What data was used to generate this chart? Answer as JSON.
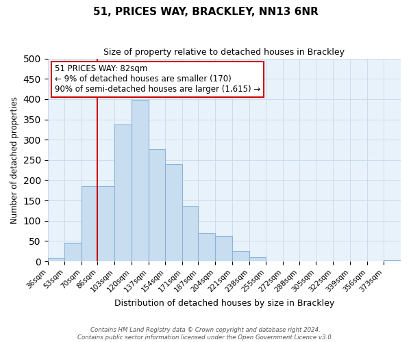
{
  "title": "51, PRICES WAY, BRACKLEY, NN13 6NR",
  "subtitle": "Size of property relative to detached houses in Brackley",
  "xlabel": "Distribution of detached houses by size in Brackley",
  "ylabel": "Number of detached properties",
  "bar_labels": [
    "36sqm",
    "53sqm",
    "70sqm",
    "86sqm",
    "103sqm",
    "120sqm",
    "137sqm",
    "154sqm",
    "171sqm",
    "187sqm",
    "204sqm",
    "221sqm",
    "238sqm",
    "255sqm",
    "272sqm",
    "288sqm",
    "305sqm",
    "322sqm",
    "339sqm",
    "356sqm",
    "373sqm"
  ],
  "bar_values": [
    8,
    46,
    185,
    185,
    338,
    398,
    277,
    240,
    136,
    70,
    62,
    25,
    10,
    0,
    0,
    0,
    0,
    0,
    0,
    0,
    3
  ],
  "bar_color": "#c9ddf0",
  "bar_edge_color": "#8ab4d8",
  "bin_edges": [
    36,
    53,
    70,
    86,
    103,
    120,
    137,
    154,
    171,
    187,
    204,
    221,
    238,
    255,
    272,
    288,
    305,
    322,
    339,
    356,
    373,
    390
  ],
  "ylim": [
    0,
    500
  ],
  "yticks": [
    0,
    50,
    100,
    150,
    200,
    250,
    300,
    350,
    400,
    450,
    500
  ],
  "red_line_x": 86,
  "annotation_title": "51 PRICES WAY: 82sqm",
  "annotation_line1": "← 9% of detached houses are smaller (170)",
  "annotation_line2": "90% of semi-detached houses are larger (1,615) →",
  "annotation_box_color": "#ffffff",
  "annotation_border_color": "#cc0000",
  "red_line_color": "#cc0000",
  "grid_color": "#c8d8e8",
  "plot_bg_color": "#e8f2fb",
  "fig_bg_color": "#ffffff",
  "footer_line1": "Contains HM Land Registry data © Crown copyright and database right 2024.",
  "footer_line2": "Contains public sector information licensed under the Open Government Licence v3.0."
}
